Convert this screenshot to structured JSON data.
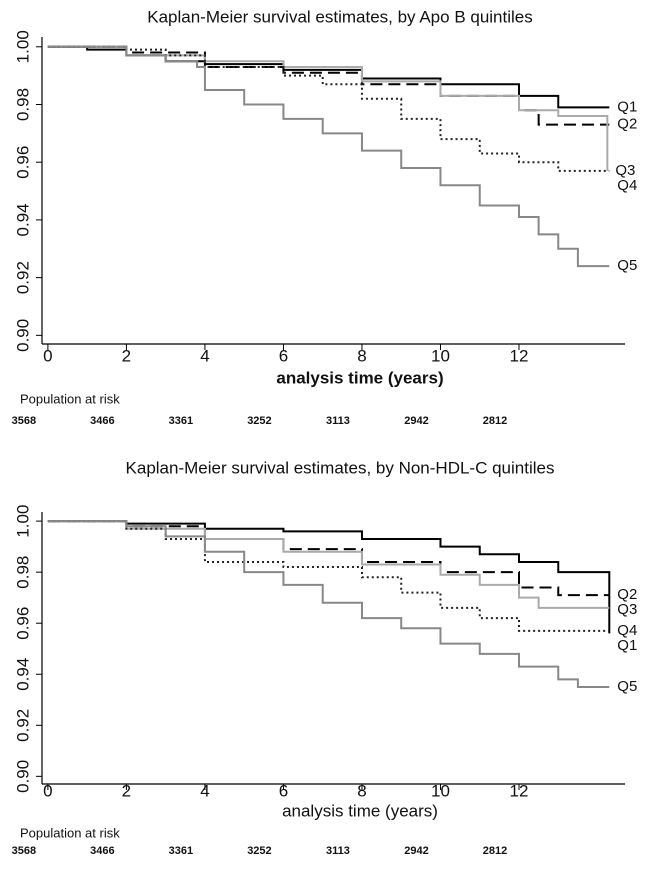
{
  "chart_data": [
    {
      "type": "line",
      "title": "Kaplan-Meier survival estimates, by Apo B quintiles",
      "xlabel": "analysis time (years)",
      "xlabel_bold": true,
      "xlim": [
        -0.15,
        14.7
      ],
      "xticks": [
        0,
        2,
        4,
        6,
        8,
        10,
        12
      ],
      "ylim": [
        0.897,
        1.002
      ],
      "yticks": [
        {
          "value": 0.9,
          "label": "0.90"
        },
        0.92,
        0.94,
        0.96,
        0.98,
        {
          "value": 1.0,
          "label": "1.00"
        }
      ],
      "series": [
        {
          "name": "Q1",
          "color": "#000000",
          "line_style": "solid",
          "x": [
            0,
            1,
            2,
            3,
            4,
            6,
            8,
            10,
            12,
            13,
            14.3
          ],
          "values": [
            1.0,
            0.999,
            0.997,
            0.995,
            0.994,
            0.992,
            0.989,
            0.987,
            0.983,
            0.979,
            0.979
          ]
        },
        {
          "name": "Q2",
          "color": "#000000",
          "line_style": "dashed",
          "x": [
            0,
            2,
            4,
            6,
            8,
            10,
            12,
            12.5,
            14.3
          ],
          "values": [
            1.0,
            0.998,
            0.993,
            0.991,
            0.987,
            0.983,
            0.978,
            0.973,
            0.973
          ]
        },
        {
          "name": "Q3",
          "color": "#aaaaaa",
          "line_style": "solid",
          "x": [
            0,
            2,
            4,
            6,
            8,
            10,
            12,
            13,
            14.25
          ],
          "values": [
            1.0,
            0.997,
            0.995,
            0.993,
            0.988,
            0.983,
            0.978,
            0.976,
            0.957
          ]
        },
        {
          "name": "Q4",
          "color": "#222222",
          "line_style": "dotted",
          "x": [
            0,
            2,
            3,
            4,
            6,
            7,
            8,
            9,
            10,
            11,
            12,
            13,
            14.3
          ],
          "values": [
            1.0,
            0.999,
            0.997,
            0.993,
            0.99,
            0.987,
            0.982,
            0.975,
            0.968,
            0.963,
            0.96,
            0.957,
            0.957
          ]
        },
        {
          "name": "Q5",
          "color": "#888888",
          "line_style": "solid",
          "x": [
            0,
            2,
            3,
            3.8,
            4,
            5,
            6,
            7,
            8,
            9,
            10,
            11,
            12,
            12.5,
            13,
            13.5,
            14.3
          ],
          "values": [
            1.0,
            0.997,
            0.995,
            0.993,
            0.985,
            0.98,
            0.975,
            0.97,
            0.964,
            0.958,
            0.952,
            0.945,
            0.941,
            0.935,
            0.93,
            0.924,
            0.924
          ]
        }
      ],
      "risk_label": "Population at risk",
      "risk_counts": [
        3568,
        3466,
        3361,
        3252,
        3113,
        2942,
        2812
      ]
    },
    {
      "type": "line",
      "title": "Kaplan-Meier survival estimates, by Non-HDL-C quintiles",
      "xlabel": "analysis time (years)",
      "xlabel_bold": false,
      "xlim": [
        -0.15,
        14.7
      ],
      "xticks": [
        0,
        2,
        4,
        6,
        8,
        10,
        12
      ],
      "ylim": [
        0.897,
        1.002
      ],
      "yticks": [
        {
          "value": 0.9,
          "label": "0.90"
        },
        0.92,
        0.94,
        0.96,
        0.98,
        {
          "value": 1.0,
          "label": "1.00"
        }
      ],
      "series": [
        {
          "name": "Q1",
          "color": "#000000",
          "line_style": "solid",
          "x": [
            0,
            2,
            4,
            6,
            8,
            10,
            11,
            12,
            13,
            14.3
          ],
          "values": [
            1.0,
            0.999,
            0.997,
            0.996,
            0.993,
            0.99,
            0.987,
            0.984,
            0.98,
            0.956
          ]
        },
        {
          "name": "Q2",
          "color": "#000000",
          "line_style": "dashed",
          "x": [
            0,
            2,
            4,
            6,
            8,
            10,
            12,
            13,
            14.3
          ],
          "values": [
            1.0,
            0.998,
            0.993,
            0.989,
            0.984,
            0.98,
            0.974,
            0.971,
            0.971
          ]
        },
        {
          "name": "Q3",
          "color": "#aaaaaa",
          "line_style": "solid",
          "x": [
            0,
            2,
            4,
            6,
            8,
            10,
            11,
            12,
            12.5,
            14.3
          ],
          "values": [
            1.0,
            0.997,
            0.993,
            0.988,
            0.983,
            0.979,
            0.975,
            0.97,
            0.966,
            0.966
          ]
        },
        {
          "name": "Q4",
          "color": "#222222",
          "line_style": "dotted",
          "x": [
            0,
            2,
            3,
            4,
            6,
            8,
            9,
            10,
            11,
            12,
            14.3
          ],
          "values": [
            1.0,
            0.997,
            0.993,
            0.984,
            0.982,
            0.978,
            0.972,
            0.966,
            0.962,
            0.957,
            0.957
          ]
        },
        {
          "name": "Q5",
          "color": "#888888",
          "line_style": "solid",
          "x": [
            0,
            2,
            3,
            4,
            5,
            6,
            7,
            8,
            9,
            10,
            11,
            12,
            13,
            13.5,
            14.3
          ],
          "values": [
            1.0,
            0.998,
            0.994,
            0.988,
            0.98,
            0.975,
            0.968,
            0.962,
            0.958,
            0.952,
            0.948,
            0.943,
            0.938,
            0.935,
            0.935
          ]
        }
      ],
      "risk_label": "Population at risk",
      "risk_counts": [
        3568,
        3466,
        3361,
        3252,
        3113,
        2942,
        2812
      ]
    }
  ]
}
